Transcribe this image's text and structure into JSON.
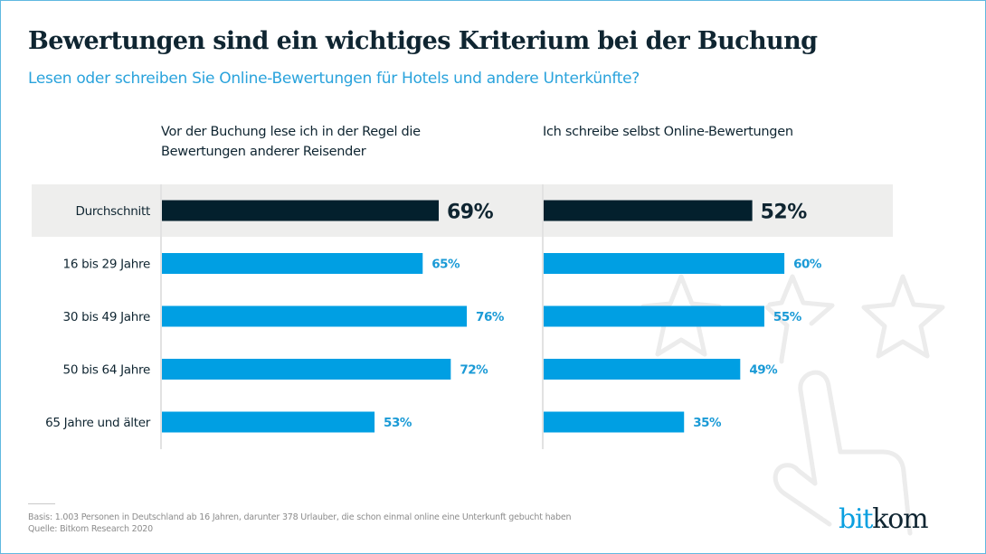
{
  "header": {
    "title": "Bewertungen sind ein wichtiges Kriterium bei der Buchung",
    "subtitle": "Lesen oder schreiben Sie Online-Bewertungen für Hotels und andere Unterkünfte?"
  },
  "chart_data": {
    "type": "bar",
    "orientation": "horizontal",
    "title": "Bewertungen sind ein wichtiges Kriterium bei der Buchung",
    "subtitle": "Lesen oder schreiben Sie Online-Bewertungen für Hotels und andere Unterkünfte?",
    "categories": [
      "Durchschnitt",
      "16 bis 29 Jahre",
      "30 bis 49 Jahre",
      "50 bis 64 Jahre",
      "65 Jahre und älter"
    ],
    "highlight_category": "Durchschnitt",
    "unit": "%",
    "xlim": [
      0,
      100
    ],
    "grid": false,
    "series": [
      {
        "name": "Vor der Buchung lese ich in der Regel die Bewertungen anderer Reisender",
        "title_lines": [
          "Vor der Buchung lese ich in der Regel die",
          "Bewertungen anderer Reisender"
        ],
        "values": [
          69,
          65,
          76,
          72,
          53
        ],
        "labels": [
          "69%",
          "65%",
          "76%",
          "72%",
          "53%"
        ]
      },
      {
        "name": "Ich schreibe selbst Online-Bewertungen",
        "title_lines": [
          "Ich schreibe selbst Online-Bewertungen"
        ],
        "values": [
          52,
          60,
          55,
          49,
          35
        ],
        "labels": [
          "52%",
          "60%",
          "55%",
          "49%",
          "35%"
        ]
      }
    ],
    "colors": {
      "highlight_bar": "#03202d",
      "bar": "#009fe3",
      "highlight_label": "#0f2531",
      "label": "#1a9ad6",
      "highlight_band": "#eeeeed",
      "axis": "#e2e2e2"
    }
  },
  "footer": {
    "basis": "Basis: 1.003 Personen in Deutschland ab 16 Jahren, darunter 378 Urlauber, die schon einmal online eine Unterkunft gebucht haben",
    "source": "Quelle: Bitkom Research 2020"
  },
  "logo": {
    "part1": "bit",
    "part2": "kom"
  },
  "decoration": {
    "icons": [
      "star-outline-icon",
      "star-outline-icon",
      "star-outline-icon",
      "pointing-hand-icon"
    ]
  }
}
